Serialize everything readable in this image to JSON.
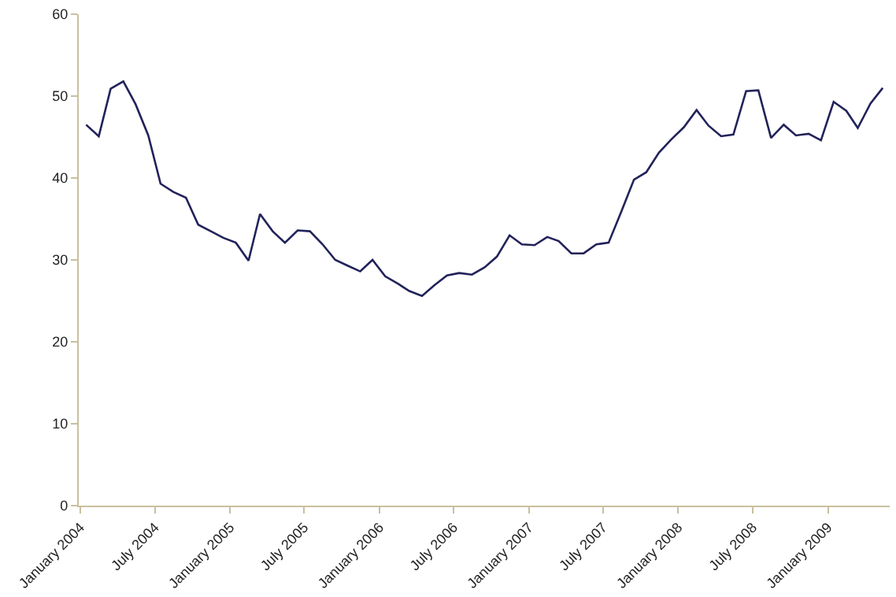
{
  "chart_data": {
    "type": "line",
    "x": [
      "2004-01-15",
      "2004-02-15",
      "2004-03-15",
      "2004-04-15",
      "2004-05-15",
      "2004-06-15",
      "2004-07-15",
      "2004-08-15",
      "2004-09-15",
      "2004-10-15",
      "2004-11-15",
      "2004-12-15",
      "2005-01-15",
      "2005-02-15",
      "2005-03-15",
      "2005-04-15",
      "2005-05-15",
      "2005-06-15",
      "2005-07-15",
      "2005-08-15",
      "2005-09-15",
      "2005-10-15",
      "2005-11-15",
      "2005-12-15",
      "2006-01-15",
      "2006-02-15",
      "2006-03-15",
      "2006-04-15",
      "2006-05-15",
      "2006-06-15",
      "2006-07-15",
      "2006-08-15",
      "2006-09-15",
      "2006-10-15",
      "2006-11-15",
      "2006-12-15",
      "2007-01-15",
      "2007-02-15",
      "2007-03-15",
      "2007-04-15",
      "2007-05-15",
      "2007-06-15",
      "2007-07-15",
      "2007-08-15",
      "2007-09-15",
      "2007-10-15",
      "2007-11-15",
      "2007-12-15",
      "2008-01-15",
      "2008-02-15",
      "2008-03-15",
      "2008-04-15",
      "2008-05-15",
      "2008-06-15",
      "2008-07-15",
      "2008-08-15",
      "2008-09-15",
      "2008-10-15",
      "2008-11-15",
      "2008-12-15",
      "2009-01-15",
      "2009-02-15",
      "2009-03-15",
      "2009-04-15",
      "2009-05-15"
    ],
    "series": [
      {
        "color": "#22225a",
        "values": [
          46.5,
          45.1,
          50.9,
          51.8,
          49.0,
          45.2,
          39.3,
          38.3,
          37.6,
          34.3,
          33.5,
          32.7,
          32.1,
          29.9,
          35.6,
          33.5,
          32.1,
          33.6,
          33.5,
          31.9,
          30.0,
          29.3,
          28.6,
          30.0,
          28.0,
          27.1,
          26.2,
          25.6,
          26.9,
          28.1,
          28.4,
          28.2,
          29.1,
          30.4,
          33.0,
          31.9,
          31.8,
          32.8,
          32.3,
          30.8,
          30.8,
          31.9,
          32.1,
          35.9,
          39.8,
          40.7,
          43.1,
          44.7,
          46.2,
          48.3,
          46.4,
          45.1,
          45.3,
          50.6,
          50.7,
          44.9,
          46.5,
          45.2,
          45.4,
          44.6,
          49.3,
          48.2,
          46.1,
          49.1,
          51.0
        ]
      }
    ],
    "xlim": [
      "2003-12-28",
      "2009-06-01"
    ],
    "xticks": [
      {
        "value": "2004-01-01",
        "label": "January 2004"
      },
      {
        "value": "2004-07-01",
        "label": "July 2004"
      },
      {
        "value": "2005-01-01",
        "label": "January 2005"
      },
      {
        "value": "2005-07-01",
        "label": "July 2005"
      },
      {
        "value": "2006-01-01",
        "label": "January 2006"
      },
      {
        "value": "2006-07-01",
        "label": "July 2006"
      },
      {
        "value": "2007-01-01",
        "label": "January 2007"
      },
      {
        "value": "2007-07-01",
        "label": "July 2007"
      },
      {
        "value": "2008-01-01",
        "label": "January 2008"
      },
      {
        "value": "2008-07-01",
        "label": "July 2008"
      },
      {
        "value": "2009-01-01",
        "label": "January 2009"
      }
    ],
    "ylim": [
      0,
      60
    ],
    "yticks": [
      0,
      10,
      20,
      30,
      40,
      50,
      60
    ],
    "marker": "none",
    "line_style": "solid"
  }
}
